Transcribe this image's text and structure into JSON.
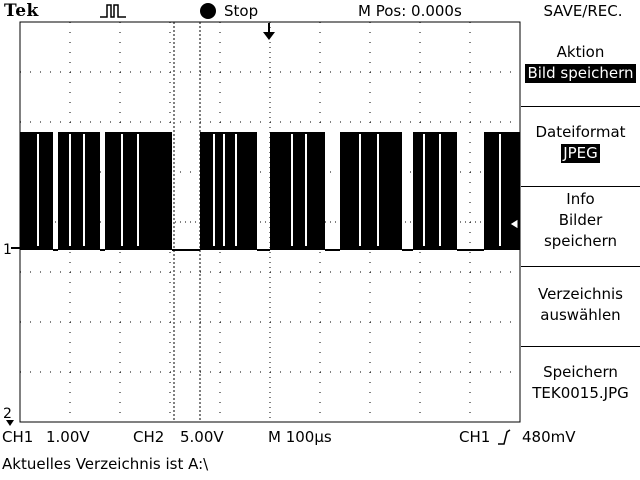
{
  "header": {
    "brand": "Tek",
    "trigger_icon": "pulse-icon",
    "run_state": "Stop",
    "position": "M Pos: 0.000s",
    "menu_title": "SAVE/REC."
  },
  "menu": {
    "action": {
      "label": "Aktion",
      "value": "Bild speichern"
    },
    "format": {
      "label": "Dateiformat",
      "value": "JPEG"
    },
    "info": {
      "line1": "Info",
      "line2": "Bilder",
      "line3": "speichern"
    },
    "dir": {
      "line1": "Verzeichnis",
      "line2": "auswählen"
    },
    "save": {
      "line1": "Speichern",
      "line2": "TEK0015.JPG"
    }
  },
  "status": {
    "ch1": "CH1",
    "ch1_scale": "1.00V",
    "ch2": "CH2",
    "ch2_scale": "5.00V",
    "timebase": "M 100µs",
    "trig_source": "CH1",
    "trig_level": "480mV"
  },
  "markers": {
    "ch1": "1",
    "ch2": "2"
  },
  "message": "Aktuelles Verzeichnis ist A:\\"
}
